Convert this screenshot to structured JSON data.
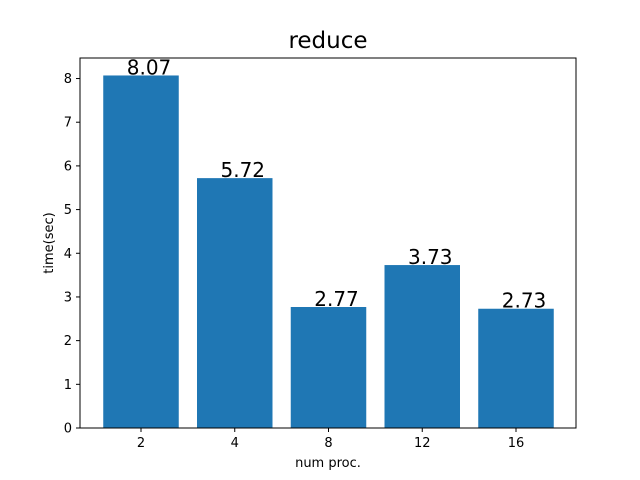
{
  "chart_data": {
    "type": "bar",
    "title": "reduce",
    "xlabel": "num proc.",
    "ylabel": "time(sec)",
    "categories": [
      "2",
      "4",
      "8",
      "12",
      "16"
    ],
    "values": [
      8.07,
      5.72,
      2.77,
      3.73,
      2.73
    ],
    "data_labels": [
      "8.07",
      "5.72",
      "2.77",
      "3.73",
      "2.73"
    ],
    "ylim": [
      0,
      8.47
    ],
    "yticks": [
      0,
      1,
      2,
      3,
      4,
      5,
      6,
      7,
      8
    ],
    "bar_color": "#1f77b4",
    "grid": false,
    "legend": "none"
  }
}
